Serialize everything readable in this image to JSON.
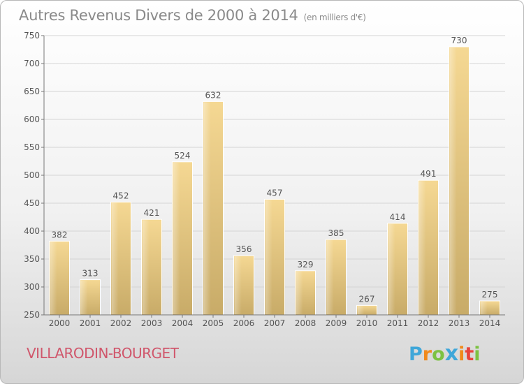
{
  "header": {
    "title": "Autres Revenus Divers de 2000 à 2014",
    "unit": "(en milliers d'€)"
  },
  "footer": {
    "place": "VILLARODIN-BOURGET",
    "logo_letters": [
      "P",
      "r",
      "o",
      "x",
      "i",
      "t",
      "i"
    ],
    "logo_colors": [
      "#3fa7d9",
      "#f08a1c",
      "#7cc242",
      "#3fa7d9",
      "#f08a1c",
      "#e8433b",
      "#7cc242"
    ]
  },
  "chart_data": {
    "type": "bar",
    "categories": [
      "2000",
      "2001",
      "2002",
      "2003",
      "2004",
      "2005",
      "2006",
      "2007",
      "2008",
      "2009",
      "2010",
      "2011",
      "2012",
      "2013",
      "2014"
    ],
    "values": [
      382,
      313,
      452,
      421,
      524,
      632,
      356,
      457,
      329,
      385,
      267,
      414,
      491,
      730,
      275
    ],
    "ylim": [
      250,
      750
    ],
    "yticks": [
      250,
      300,
      350,
      400,
      450,
      500,
      550,
      600,
      650,
      700,
      750
    ],
    "grid": true,
    "bar_color": "#e8c97f",
    "title": "Autres Revenus Divers de 2000 à 2014",
    "xlabel": "",
    "ylabel": ""
  }
}
